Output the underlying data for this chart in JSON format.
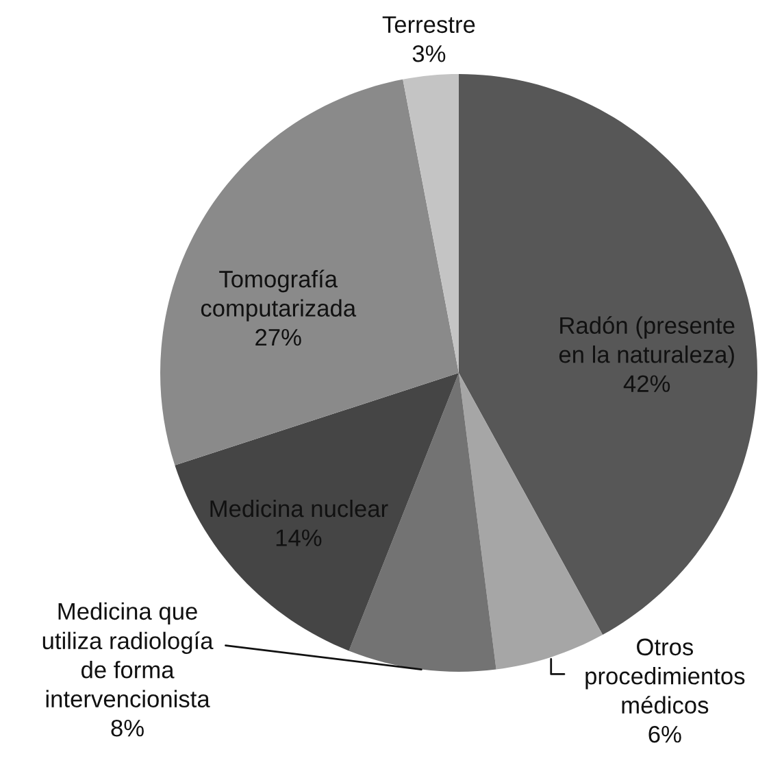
{
  "chart_data": {
    "type": "pie",
    "categories": [
      "Radón (presente\nen la naturaleza)",
      "Otros\nprocedimientos\nmédicos",
      "Medicina que\nutiliza radiología\nde forma\nintervencionista",
      "Medicina nuclear",
      "Tomografía\ncomputarizada",
      "Terrestre"
    ],
    "values": [
      42,
      6,
      8,
      14,
      27,
      3
    ],
    "value_labels": [
      "42%",
      "6%",
      "8%",
      "14%",
      "27%",
      "3%"
    ],
    "colors": [
      "#575757",
      "#a6a6a6",
      "#737373",
      "#454545",
      "#8a8a8a",
      "#c4c4c4"
    ]
  }
}
